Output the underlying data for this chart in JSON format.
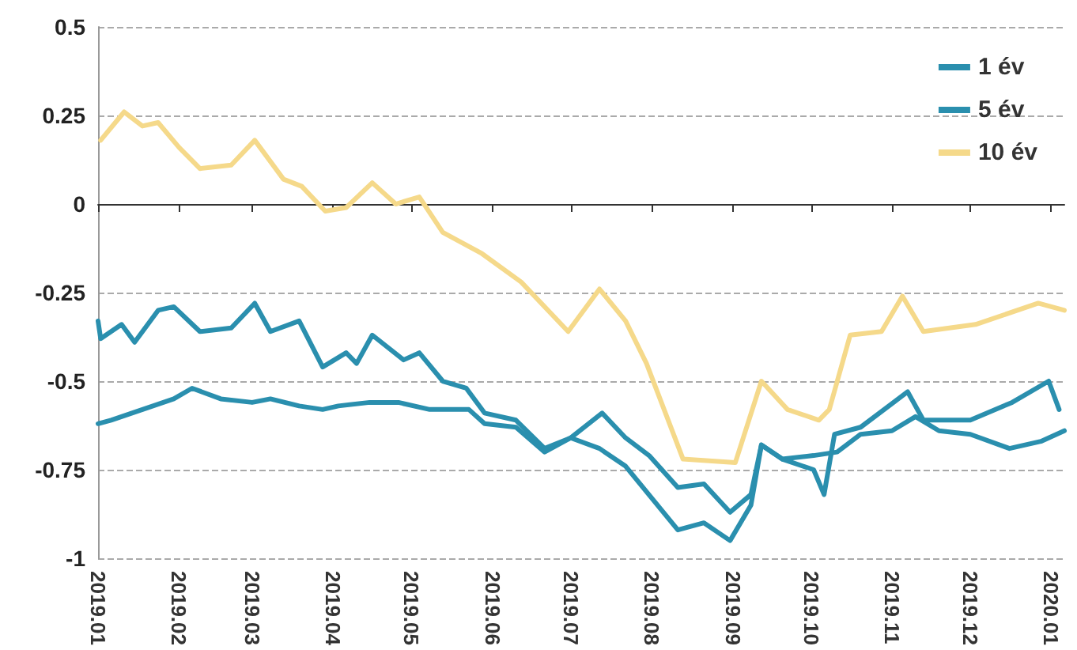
{
  "chart_data": {
    "type": "line",
    "xlim": [
      "2019-01-01",
      "2020-01-06"
    ],
    "ylim": [
      -1,
      0.5
    ],
    "yticks": [
      -1,
      -0.75,
      -0.5,
      -0.25,
      0,
      0.25,
      0.5
    ],
    "xticks": [
      {
        "value": "2019-01-01",
        "label": "2019.01"
      },
      {
        "value": "2019-02-01",
        "label": "2019.02"
      },
      {
        "value": "2019-03-01",
        "label": "2019.03"
      },
      {
        "value": "2019-04-01",
        "label": "2019.04"
      },
      {
        "value": "2019-05-01",
        "label": "2019.05"
      },
      {
        "value": "2019-06-01",
        "label": "2019.06"
      },
      {
        "value": "2019-07-01",
        "label": "2019.07"
      },
      {
        "value": "2019-08-01",
        "label": "2019.08"
      },
      {
        "value": "2019-09-01",
        "label": "2019.09"
      },
      {
        "value": "2019-10-01",
        "label": "2019.10"
      },
      {
        "value": "2019-11-01",
        "label": "2019.11"
      },
      {
        "value": "2019-12-01",
        "label": "2019.12"
      },
      {
        "value": "2020-01-01",
        "label": "2020.01"
      }
    ],
    "grid": "y",
    "legend": "top right",
    "marker": "none",
    "line_style": "solid",
    "series": [
      {
        "name": "1 év",
        "color": "#2a8fae",
        "x": [
          "2019-01-01",
          "2019-01-06",
          "2019-01-18",
          "2019-01-30",
          "2019-02-06",
          "2019-02-17",
          "2019-03-01",
          "2019-03-08",
          "2019-03-19",
          "2019-03-28",
          "2019-04-03",
          "2019-04-15",
          "2019-04-26",
          "2019-05-08",
          "2019-05-23",
          "2019-05-29",
          "2019-06-10",
          "2019-06-21",
          "2019-07-01",
          "2019-07-13",
          "2019-07-22",
          "2019-07-31",
          "2019-08-11",
          "2019-08-21",
          "2019-08-31",
          "2019-09-08",
          "2019-09-12",
          "2019-09-20",
          "2019-10-02",
          "2019-10-11",
          "2019-10-20",
          "2019-11-01",
          "2019-11-10",
          "2019-11-19",
          "2019-12-01",
          "2019-12-16",
          "2019-12-28",
          "2020-01-06"
        ],
        "values": [
          -0.62,
          -0.61,
          -0.58,
          -0.55,
          -0.52,
          -0.55,
          -0.56,
          -0.55,
          -0.57,
          -0.58,
          -0.57,
          -0.56,
          -0.56,
          -0.58,
          -0.58,
          -0.62,
          -0.63,
          -0.7,
          -0.66,
          -0.59,
          -0.66,
          -0.71,
          -0.8,
          -0.79,
          -0.87,
          -0.82,
          -0.68,
          -0.72,
          -0.71,
          -0.7,
          -0.65,
          -0.64,
          -0.6,
          -0.64,
          -0.65,
          -0.69,
          -0.67,
          -0.64
        ]
      },
      {
        "name": "5 év",
        "color": "#2a8fae",
        "x": [
          "2019-01-01",
          "2019-01-02",
          "2019-01-10",
          "2019-01-15",
          "2019-01-24",
          "2019-01-30",
          "2019-02-09",
          "2019-02-21",
          "2019-03-02",
          "2019-03-08",
          "2019-03-19",
          "2019-03-28",
          "2019-04-06",
          "2019-04-10",
          "2019-04-16",
          "2019-04-28",
          "2019-05-04",
          "2019-05-13",
          "2019-05-22",
          "2019-05-29",
          "2019-06-10",
          "2019-06-21",
          "2019-07-01",
          "2019-07-12",
          "2019-07-22",
          "2019-08-11",
          "2019-08-21",
          "2019-08-31",
          "2019-09-08",
          "2019-09-12",
          "2019-09-20",
          "2019-10-02",
          "2019-10-06",
          "2019-10-10",
          "2019-10-20",
          "2019-11-07",
          "2019-11-13",
          "2019-12-01",
          "2019-12-17",
          "2019-12-31",
          "2020-01-04"
        ],
        "values": [
          -0.33,
          -0.38,
          -0.34,
          -0.39,
          -0.3,
          -0.29,
          -0.36,
          -0.35,
          -0.28,
          -0.36,
          -0.33,
          -0.46,
          -0.42,
          -0.45,
          -0.37,
          -0.44,
          -0.42,
          -0.5,
          -0.52,
          -0.59,
          -0.61,
          -0.69,
          -0.66,
          -0.69,
          -0.74,
          -0.92,
          -0.9,
          -0.95,
          -0.85,
          -0.68,
          -0.72,
          -0.75,
          -0.82,
          -0.65,
          -0.63,
          -0.53,
          -0.61,
          -0.61,
          -0.56,
          -0.5,
          -0.58
        ]
      },
      {
        "name": "10 év",
        "color": "#f5d98a",
        "x": [
          "2019-01-02",
          "2019-01-11",
          "2019-01-18",
          "2019-01-24",
          "2019-02-01",
          "2019-02-09",
          "2019-02-21",
          "2019-03-02",
          "2019-03-13",
          "2019-03-20",
          "2019-03-29",
          "2019-04-06",
          "2019-04-16",
          "2019-04-25",
          "2019-05-04",
          "2019-05-13",
          "2019-05-28",
          "2019-06-12",
          "2019-06-30",
          "2019-07-12",
          "2019-07-22",
          "2019-07-30",
          "2019-08-13",
          "2019-09-02",
          "2019-09-12",
          "2019-09-22",
          "2019-10-04",
          "2019-10-08",
          "2019-10-16",
          "2019-10-28",
          "2019-11-05",
          "2019-11-13",
          "2019-12-03",
          "2019-12-27",
          "2020-01-06"
        ],
        "values": [
          0.18,
          0.26,
          0.22,
          0.23,
          0.16,
          0.1,
          0.11,
          0.18,
          0.07,
          0.05,
          -0.02,
          -0.01,
          0.06,
          0,
          0.02,
          -0.08,
          -0.14,
          -0.22,
          -0.36,
          -0.24,
          -0.33,
          -0.45,
          -0.72,
          -0.73,
          -0.5,
          -0.58,
          -0.61,
          -0.58,
          -0.37,
          -0.36,
          -0.26,
          -0.36,
          -0.34,
          -0.28,
          -0.3
        ]
      }
    ]
  }
}
